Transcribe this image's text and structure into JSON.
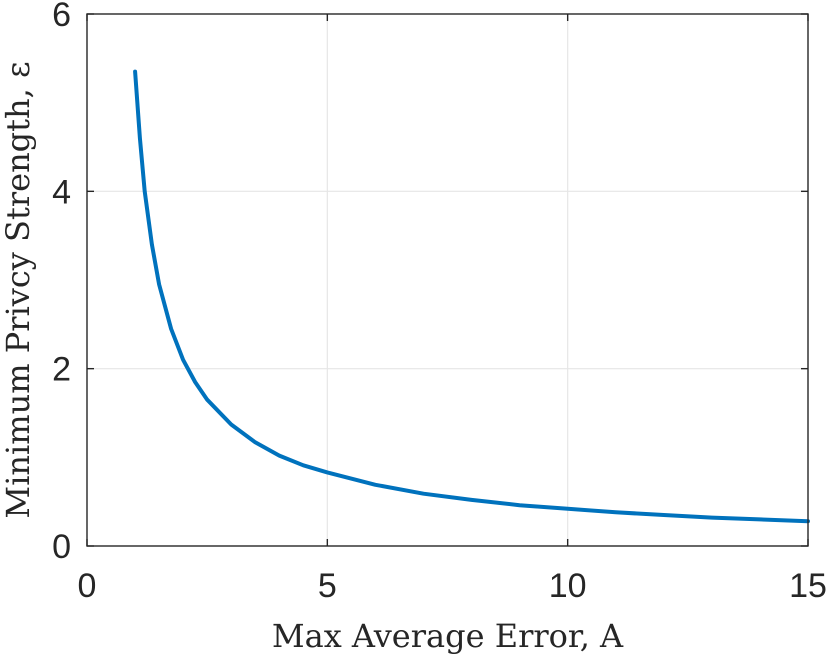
{
  "chart_data": {
    "type": "line",
    "xlabel": "Max Average Error, A",
    "ylabel": "Minimum Privcy Strength, ε",
    "xlim": [
      0,
      15
    ],
    "ylim": [
      0,
      6
    ],
    "x_ticks": [
      "0",
      "5",
      "10",
      "15"
    ],
    "y_ticks": [
      "0",
      "2",
      "4",
      "6"
    ],
    "grid": true,
    "series": [
      {
        "color": "#0072BD",
        "x": [
          1,
          1.1,
          1.2,
          1.35,
          1.5,
          1.75,
          2,
          2.25,
          2.5,
          3,
          3.5,
          4,
          4.5,
          5,
          6,
          7,
          8,
          9,
          10,
          11,
          12,
          13,
          14,
          15
        ],
        "y": [
          5.35,
          4.6,
          4.0,
          3.4,
          2.95,
          2.45,
          2.1,
          1.85,
          1.65,
          1.37,
          1.17,
          1.02,
          0.91,
          0.83,
          0.69,
          0.59,
          0.52,
          0.46,
          0.42,
          0.38,
          0.35,
          0.32,
          0.3,
          0.28
        ]
      }
    ]
  }
}
